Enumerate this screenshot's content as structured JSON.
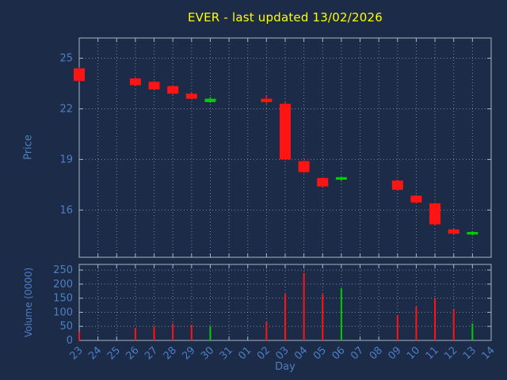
{
  "title": "EVER - last updated 13/02/2026",
  "colors": {
    "background": "#1c2b47",
    "title": "#ffff00",
    "axis_label": "#4c7fc4",
    "tick_label": "#4c7fc4",
    "border": "#aab6c2",
    "grid": "#c8d0da",
    "up": "#00cc00",
    "down": "#ff1414"
  },
  "chart_data": [
    {
      "type": "candlestick",
      "title": "EVER - last updated 13/02/2026",
      "ylabel": "Price",
      "yticks": [
        16,
        19,
        22,
        25
      ],
      "ylim": [
        13.2,
        26.2
      ],
      "grid": "dotted",
      "x_categories": [
        "23",
        "24",
        "25",
        "26",
        "27",
        "28",
        "29",
        "30",
        "31",
        "01",
        "02",
        "03",
        "04",
        "05",
        "06",
        "07",
        "08",
        "09",
        "10",
        "11",
        "12",
        "13",
        "14"
      ],
      "candles": [
        {
          "day": "23",
          "open": 24.4,
          "high": 24.45,
          "low": 23.6,
          "close": 23.65
        },
        {
          "day": "26",
          "open": 23.8,
          "high": 23.85,
          "low": 23.35,
          "close": 23.4
        },
        {
          "day": "27",
          "open": 23.6,
          "high": 23.65,
          "low": 23.1,
          "close": 23.15
        },
        {
          "day": "28",
          "open": 23.35,
          "high": 23.4,
          "low": 22.85,
          "close": 22.9
        },
        {
          "day": "29",
          "open": 22.9,
          "high": 22.95,
          "low": 22.55,
          "close": 22.6
        },
        {
          "day": "30",
          "open": 22.4,
          "high": 22.7,
          "low": 22.35,
          "close": 22.6
        },
        {
          "day": "02",
          "open": 22.6,
          "high": 22.8,
          "low": 22.3,
          "close": 22.4
        },
        {
          "day": "03",
          "open": 22.3,
          "high": 22.4,
          "low": 18.95,
          "close": 19.0
        },
        {
          "day": "04",
          "open": 18.9,
          "high": 18.95,
          "low": 18.2,
          "close": 18.25
        },
        {
          "day": "05",
          "open": 17.9,
          "high": 17.95,
          "low": 17.35,
          "close": 17.4
        },
        {
          "day": "06",
          "open": 17.8,
          "high": 18.0,
          "low": 17.75,
          "close": 17.95
        },
        {
          "day": "09",
          "open": 17.75,
          "high": 17.8,
          "low": 17.15,
          "close": 17.2
        },
        {
          "day": "10",
          "open": 16.85,
          "high": 16.9,
          "low": 16.4,
          "close": 16.45
        },
        {
          "day": "11",
          "open": 16.4,
          "high": 16.45,
          "low": 15.1,
          "close": 15.15
        },
        {
          "day": "12",
          "open": 14.85,
          "high": 14.9,
          "low": 14.55,
          "close": 14.6
        },
        {
          "day": "13",
          "open": 14.55,
          "high": 14.75,
          "low": 14.5,
          "close": 14.7
        }
      ]
    },
    {
      "type": "bar",
      "ylabel": "Volume (0000)",
      "xlabel": "Day",
      "yticks": [
        0,
        50,
        100,
        150,
        200,
        250
      ],
      "ylim": [
        0,
        270
      ],
      "grid": "dotted",
      "x_categories": [
        "23",
        "24",
        "25",
        "26",
        "27",
        "28",
        "29",
        "30",
        "31",
        "01",
        "02",
        "03",
        "04",
        "05",
        "06",
        "07",
        "08",
        "09",
        "10",
        "11",
        "12",
        "13",
        "14"
      ],
      "bars": [
        {
          "day": "23",
          "value": 30,
          "direction": "down"
        },
        {
          "day": "26",
          "value": 45,
          "direction": "down"
        },
        {
          "day": "27",
          "value": 50,
          "direction": "down"
        },
        {
          "day": "28",
          "value": 60,
          "direction": "down"
        },
        {
          "day": "29",
          "value": 55,
          "direction": "down"
        },
        {
          "day": "30",
          "value": 50,
          "direction": "up"
        },
        {
          "day": "02",
          "value": 65,
          "direction": "down"
        },
        {
          "day": "03",
          "value": 165,
          "direction": "down"
        },
        {
          "day": "04",
          "value": 240,
          "direction": "down"
        },
        {
          "day": "05",
          "value": 165,
          "direction": "down"
        },
        {
          "day": "06",
          "value": 185,
          "direction": "up"
        },
        {
          "day": "09",
          "value": 90,
          "direction": "down"
        },
        {
          "day": "10",
          "value": 120,
          "direction": "down"
        },
        {
          "day": "11",
          "value": 150,
          "direction": "down"
        },
        {
          "day": "12",
          "value": 110,
          "direction": "down"
        },
        {
          "day": "13",
          "value": 60,
          "direction": "up"
        }
      ]
    }
  ]
}
